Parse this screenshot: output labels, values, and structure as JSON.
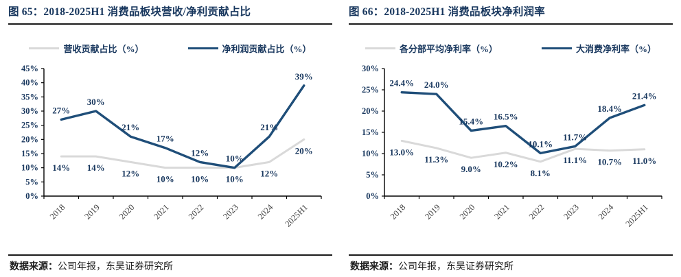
{
  "colors": {
    "navy": "#1F4E79",
    "gray": "#D9D9D9",
    "title_navy": "#17365D",
    "axis": "#000000",
    "label": "#17365D",
    "year_label": "#404040",
    "rule": "#1A1A1A"
  },
  "figures": [
    {
      "title": "图 65：2018-2025H1 消费品板块营收/净利贡献占比",
      "source_label": "数据来源：",
      "source_text": "公司年报，东吴证券研究所"
    },
    {
      "title": "图 66：2018-2025H1 消费品板块净利润率",
      "source_label": "数据来源：",
      "source_text": "公司年报，东吴证券研究所"
    }
  ],
  "chart_data": [
    {
      "type": "line",
      "title": "2018-2025H1 消费品板块营收/净利贡献占比",
      "categories": [
        "2018",
        "2019",
        "2020",
        "2021",
        "2022",
        "2023",
        "2024",
        "2025H1"
      ],
      "ylim": [
        0,
        45
      ],
      "ytick_step": 5,
      "ytick_suffix": "%",
      "grid": false,
      "legend_position": "top",
      "series": [
        {
          "name": "营收贡献占比（%）",
          "color_key": "gray",
          "label_position": "below",
          "values": [
            14,
            14,
            12,
            10,
            10,
            10,
            12,
            20
          ],
          "labels": [
            "14%",
            "14%",
            "12%",
            "10%",
            "10%",
            "10%",
            "12%",
            "20%"
          ]
        },
        {
          "name": "净利润贡献占比（%）",
          "color_key": "navy",
          "label_position": "above",
          "values": [
            27,
            30,
            21,
            17,
            12,
            10,
            21,
            39
          ],
          "labels": [
            "27%",
            "30%",
            "21%",
            "17%",
            "12%",
            "10%",
            "21%",
            "39%"
          ]
        }
      ]
    },
    {
      "type": "line",
      "title": "2018-2025H1 消费品板块净利润率",
      "categories": [
        "2018",
        "2019",
        "2020",
        "2021",
        "2022",
        "2023",
        "2024",
        "2025H1"
      ],
      "ylim": [
        0,
        30
      ],
      "ytick_step": 5,
      "ytick_suffix": "%",
      "grid": false,
      "legend_position": "top",
      "series": [
        {
          "name": "各分部平均净利率（%）",
          "color_key": "gray",
          "label_position": "below",
          "values": [
            13.0,
            11.3,
            9.0,
            10.2,
            8.1,
            11.1,
            10.7,
            11.0
          ],
          "labels": [
            "13.0%",
            "11.3%",
            "9.0%",
            "10.2%",
            "8.1%",
            "11.1%",
            "10.7%",
            "11.0%"
          ]
        },
        {
          "name": "大消费净利率（%）",
          "color_key": "navy",
          "label_position": "above",
          "values": [
            24.4,
            24.0,
            15.4,
            16.5,
            10.1,
            11.7,
            18.4,
            21.4
          ],
          "labels": [
            "24.4%",
            "24.0%",
            "15.4%",
            "16.5%",
            "10.1%",
            "11.7%",
            "18.4%",
            "21.4%"
          ]
        }
      ]
    }
  ]
}
